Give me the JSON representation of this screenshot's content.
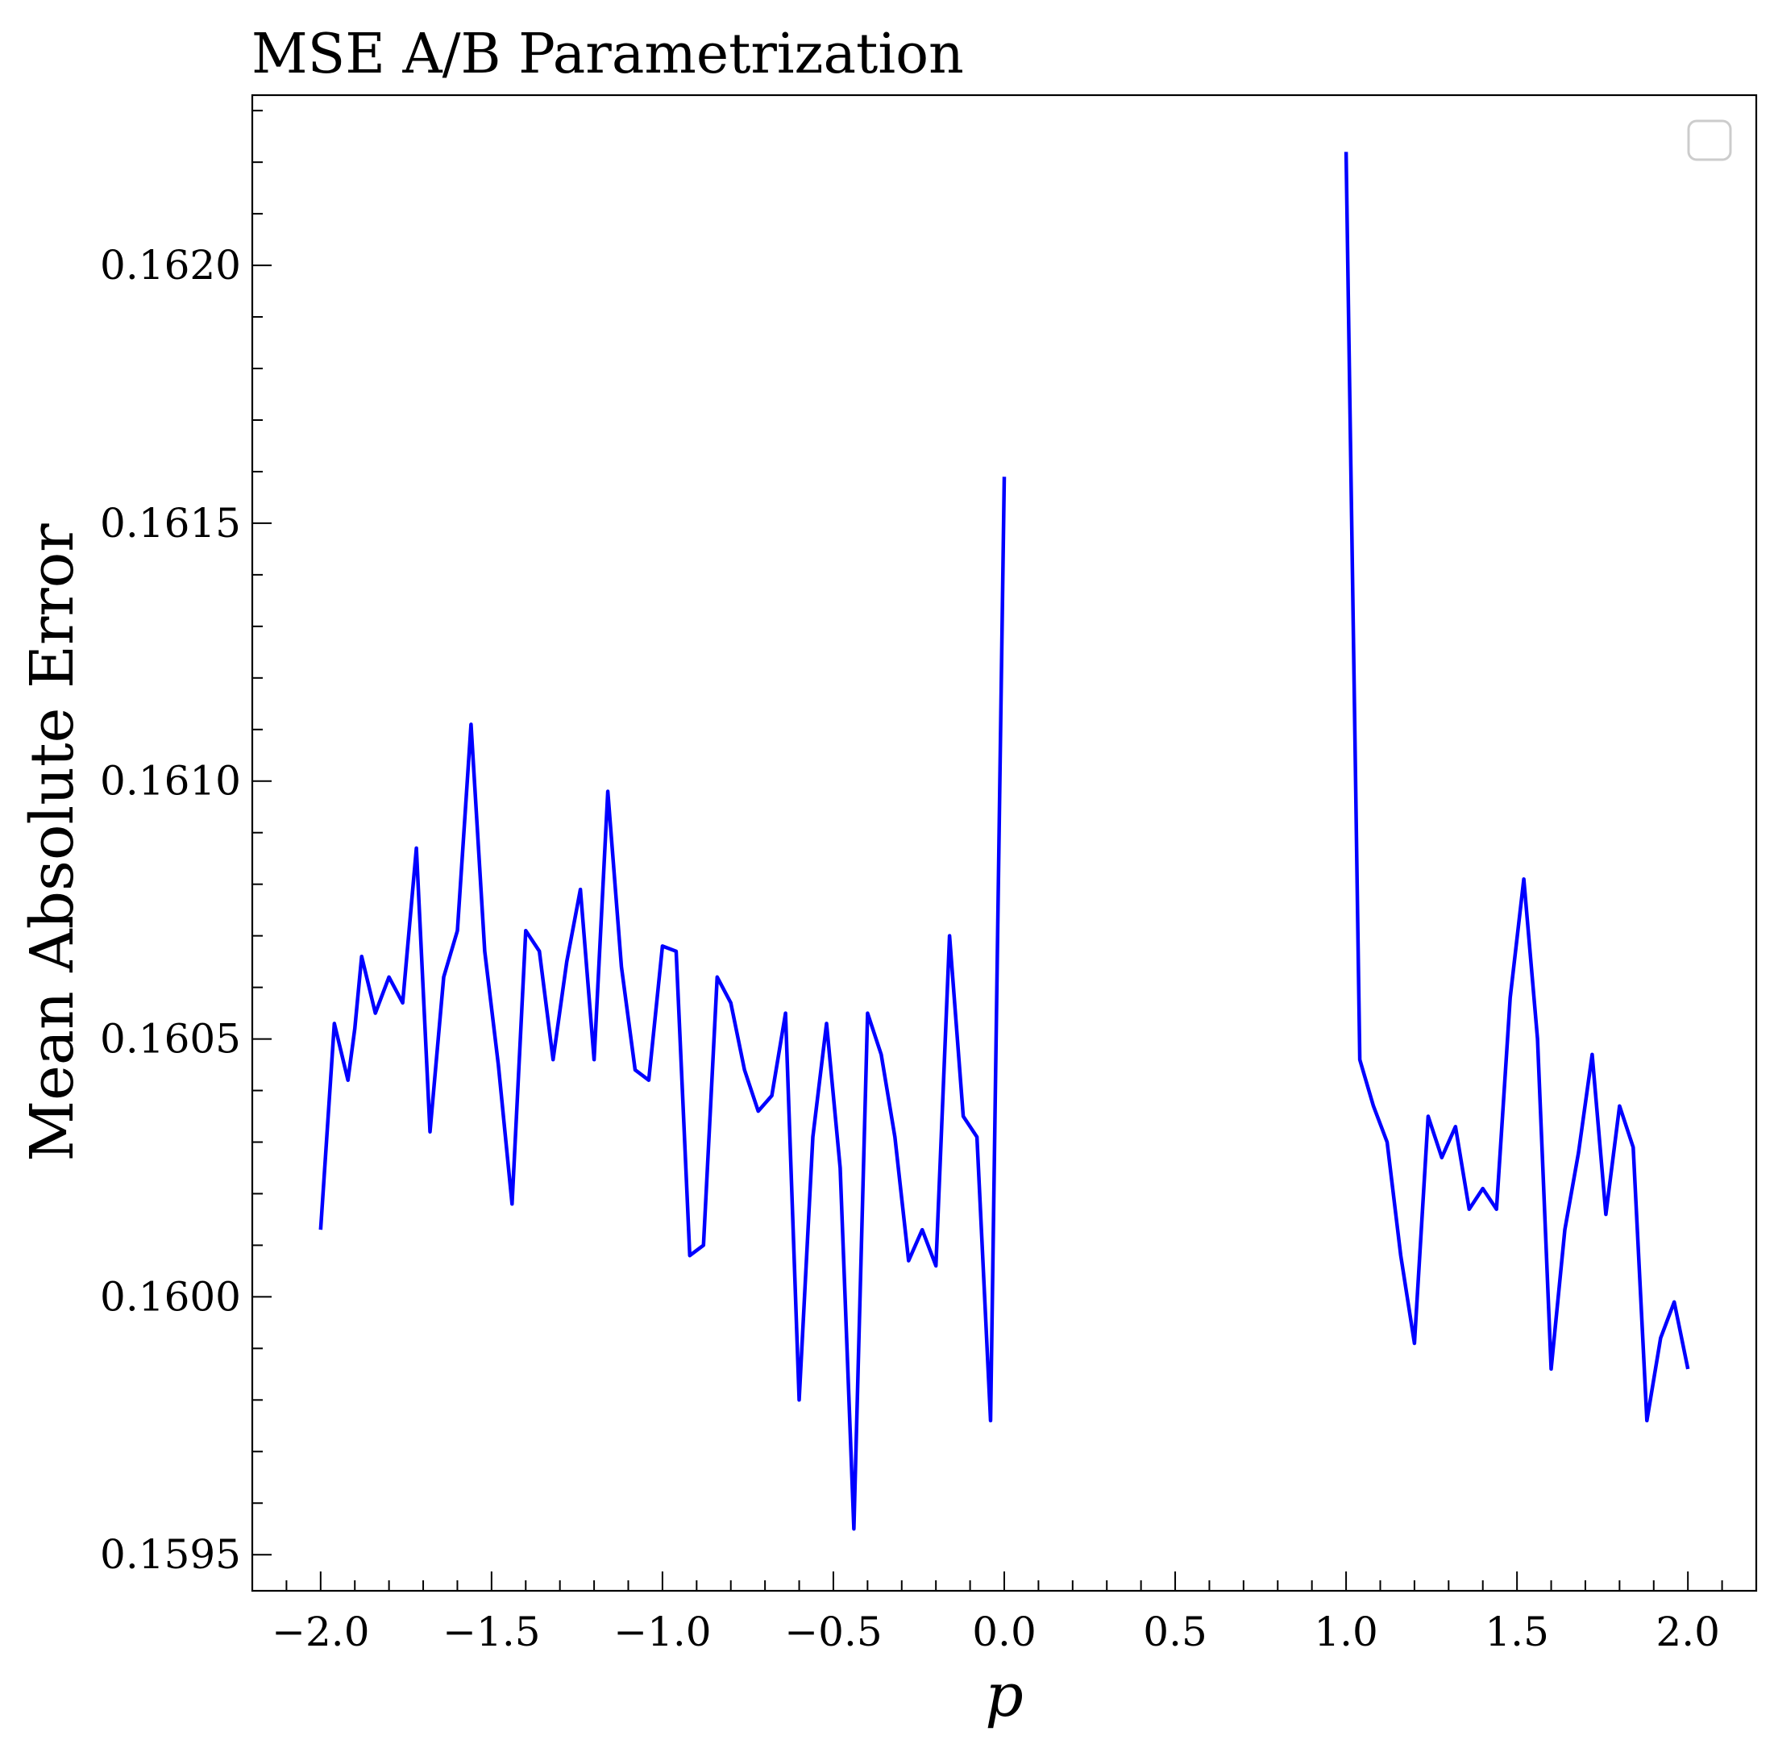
{
  "chart_data": {
    "type": "line",
    "title": "MSE A/B Parametrization",
    "xlabel": "p",
    "ylabel": "Mean Absolute Error",
    "xlim": [
      -2.2,
      2.2
    ],
    "ylim": [
      0.15943,
      0.16233
    ],
    "xticks": [
      -2.0,
      -1.5,
      -1.0,
      -0.5,
      0.0,
      0.5,
      1.0,
      1.5,
      2.0
    ],
    "xtick_labels": [
      "−2.0",
      "−1.5",
      "−1.0",
      "−0.5",
      "0.0",
      "0.5",
      "1.0",
      "1.5",
      "2.0"
    ],
    "yticks": [
      0.1595,
      0.16,
      0.1605,
      0.161,
      0.1615,
      0.162
    ],
    "ytick_labels": [
      "0.1595",
      "0.1600",
      "0.1605",
      "0.1610",
      "0.1615",
      "0.1620"
    ],
    "grid": false,
    "legend": "top-right (empty)",
    "color": "#0000ff",
    "series": [
      {
        "segments": [
          {
            "x": [
              -2.0,
              -1.96,
              -1.92,
              -1.9,
              -1.88,
              -1.84,
              -1.8,
              -1.76,
              -1.72,
              -1.68,
              -1.64,
              -1.6,
              -1.56,
              -1.52,
              -1.48,
              -1.44,
              -1.4,
              -1.36,
              -1.32,
              -1.28,
              -1.24,
              -1.2,
              -1.16,
              -1.12,
              -1.08,
              -1.04,
              -1.0,
              -0.96,
              -0.92,
              -0.88,
              -0.84,
              -0.8,
              -0.76,
              -0.72,
              -0.68,
              -0.64,
              -0.6,
              -0.56,
              -0.52,
              -0.48,
              -0.44,
              -0.4,
              -0.36,
              -0.32,
              -0.28,
              -0.24,
              -0.2,
              -0.16,
              -0.12,
              -0.08,
              -0.04,
              0.0
            ],
            "y": [
              0.16013,
              0.16053,
              0.16042,
              0.16052,
              0.16066,
              0.16055,
              0.16062,
              0.16057,
              0.16087,
              0.16032,
              0.16062,
              0.16071,
              0.16111,
              0.16067,
              0.16045,
              0.16018,
              0.16071,
              0.16067,
              0.16046,
              0.16065,
              0.16079,
              0.16046,
              0.16098,
              0.16064,
              0.16044,
              0.16042,
              0.16068,
              0.16067,
              0.16008,
              0.1601,
              0.16062,
              0.16057,
              0.16044,
              0.16036,
              0.16039,
              0.16055,
              0.1598,
              0.16031,
              0.16053,
              0.16025,
              0.15955,
              0.16055,
              0.16047,
              0.16031,
              0.16007,
              0.16013,
              0.16006,
              0.1607,
              0.16035,
              0.16031,
              0.15976,
              0.16159
            ]
          },
          {
            "x": [
              1.0,
              1.04,
              1.08,
              1.12,
              1.16,
              1.2,
              1.24,
              1.28,
              1.32,
              1.36,
              1.4,
              1.44,
              1.48,
              1.52,
              1.56,
              1.6,
              1.64,
              1.68,
              1.72,
              1.76,
              1.8,
              1.84,
              1.88,
              1.92,
              1.96,
              2.0
            ],
            "y": [
              0.16222,
              0.16046,
              0.16037,
              0.1603,
              0.16008,
              0.15991,
              0.16035,
              0.16027,
              0.16033,
              0.16017,
              0.16021,
              0.16017,
              0.16058,
              0.16081,
              0.1605,
              0.15986,
              0.16013,
              0.16028,
              0.16047,
              0.16016,
              0.16037,
              0.16029,
              0.15976,
              0.15992,
              0.15999,
              0.15986
            ]
          }
        ]
      }
    ]
  }
}
